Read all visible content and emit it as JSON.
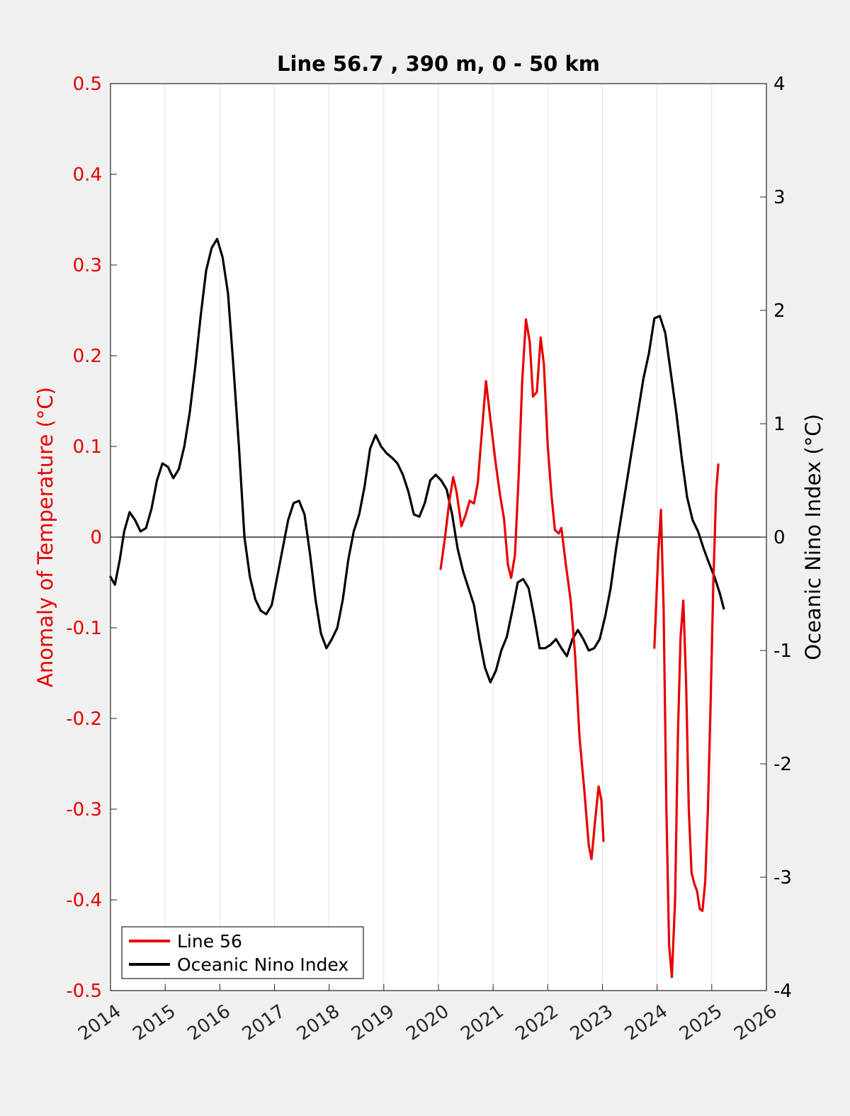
{
  "chart_data": {
    "type": "line",
    "title": "Line 56.7 , 390 m, 0 - 50 km",
    "xlabel": "",
    "ylabel_left": "Anomaly of Temperature (°C)",
    "ylabel_right": "Oceanic Nino Index (°C)",
    "xlim": [
      2014,
      2026
    ],
    "ylim_left": [
      -0.5,
      0.5
    ],
    "ylim_right": [
      -4,
      4
    ],
    "x_ticks": [
      "2014",
      "2015",
      "2016",
      "2017",
      "2018",
      "2019",
      "2020",
      "2021",
      "2022",
      "2023",
      "2024",
      "2025",
      "2026"
    ],
    "y_ticks_left": [
      "0.5",
      "0.4",
      "0.3",
      "0.2",
      "0.1",
      "0",
      "-0.1",
      "-0.2",
      "-0.3",
      "-0.4",
      "-0.5"
    ],
    "y_ticks_right": [
      "4",
      "3",
      "2",
      "1",
      "0",
      "-1",
      "-2",
      "-3",
      "-4"
    ],
    "grid": "vertical",
    "legend_placement": "bottom-left",
    "colors": {
      "left_axis": "#e60000",
      "line56": "#e60000",
      "oni": "#000000",
      "background": "#f0f0f0"
    },
    "series": [
      {
        "name": "Line 56",
        "axis": "left",
        "segments": [
          [
            [
              2020.04,
              -0.035
            ],
            [
              2020.12,
              0.0
            ],
            [
              2020.2,
              0.04
            ],
            [
              2020.27,
              0.066
            ],
            [
              2020.33,
              0.05
            ],
            [
              2020.42,
              0.012
            ],
            [
              2020.5,
              0.025
            ],
            [
              2020.57,
              0.04
            ],
            [
              2020.65,
              0.037
            ],
            [
              2020.72,
              0.06
            ],
            [
              2020.8,
              0.12
            ],
            [
              2020.87,
              0.172
            ],
            [
              2020.95,
              0.13
            ],
            [
              2021.05,
              0.08
            ],
            [
              2021.13,
              0.045
            ],
            [
              2021.2,
              0.02
            ],
            [
              2021.27,
              -0.03
            ],
            [
              2021.33,
              -0.045
            ],
            [
              2021.4,
              -0.02
            ],
            [
              2021.47,
              0.07
            ],
            [
              2021.53,
              0.17
            ],
            [
              2021.6,
              0.24
            ],
            [
              2021.67,
              0.215
            ],
            [
              2021.73,
              0.155
            ],
            [
              2021.8,
              0.16
            ],
            [
              2021.87,
              0.22
            ],
            [
              2021.93,
              0.19
            ],
            [
              2022.0,
              0.1
            ],
            [
              2022.07,
              0.045
            ],
            [
              2022.13,
              0.008
            ],
            [
              2022.2,
              0.004
            ],
            [
              2022.25,
              0.01
            ],
            [
              2022.33,
              -0.03
            ],
            [
              2022.42,
              -0.07
            ],
            [
              2022.5,
              -0.13
            ],
            [
              2022.58,
              -0.22
            ],
            [
              2022.67,
              -0.28
            ],
            [
              2022.75,
              -0.34
            ],
            [
              2022.8,
              -0.355
            ],
            [
              2022.87,
              -0.31
            ],
            [
              2022.93,
              -0.275
            ],
            [
              2022.98,
              -0.29
            ],
            [
              2023.02,
              -0.335
            ]
          ],
          [
            [
              2023.95,
              -0.122
            ],
            [
              2024.02,
              -0.02
            ],
            [
              2024.07,
              0.03
            ],
            [
              2024.12,
              -0.08
            ],
            [
              2024.17,
              -0.3
            ],
            [
              2024.22,
              -0.45
            ],
            [
              2024.27,
              -0.485
            ],
            [
              2024.33,
              -0.4
            ],
            [
              2024.38,
              -0.22
            ],
            [
              2024.43,
              -0.11
            ],
            [
              2024.48,
              -0.07
            ],
            [
              2024.53,
              -0.16
            ],
            [
              2024.58,
              -0.3
            ],
            [
              2024.63,
              -0.37
            ],
            [
              2024.68,
              -0.382
            ],
            [
              2024.73,
              -0.39
            ],
            [
              2024.78,
              -0.41
            ],
            [
              2024.83,
              -0.412
            ],
            [
              2024.88,
              -0.38
            ],
            [
              2024.93,
              -0.3
            ],
            [
              2024.98,
              -0.18
            ],
            [
              2025.03,
              -0.05
            ],
            [
              2025.08,
              0.05
            ],
            [
              2025.12,
              0.08
            ]
          ]
        ]
      },
      {
        "name": "Oceanic Nino Index",
        "axis": "right",
        "segments": [
          [
            [
              2014.0,
              -0.35
            ],
            [
              2014.08,
              -0.42
            ],
            [
              2014.17,
              -0.2
            ],
            [
              2014.25,
              0.05
            ],
            [
              2014.35,
              0.22
            ],
            [
              2014.45,
              0.15
            ],
            [
              2014.55,
              0.05
            ],
            [
              2014.65,
              0.08
            ],
            [
              2014.75,
              0.25
            ],
            [
              2014.85,
              0.5
            ],
            [
              2014.95,
              0.65
            ],
            [
              2015.05,
              0.62
            ],
            [
              2015.15,
              0.52
            ],
            [
              2015.25,
              0.6
            ],
            [
              2015.35,
              0.8
            ],
            [
              2015.45,
              1.1
            ],
            [
              2015.55,
              1.5
            ],
            [
              2015.65,
              1.95
            ],
            [
              2015.75,
              2.35
            ],
            [
              2015.85,
              2.55
            ],
            [
              2015.95,
              2.63
            ],
            [
              2016.05,
              2.47
            ],
            [
              2016.15,
              2.15
            ],
            [
              2016.25,
              1.5
            ],
            [
              2016.35,
              0.8
            ],
            [
              2016.45,
              0.0
            ],
            [
              2016.55,
              -0.35
            ],
            [
              2016.65,
              -0.55
            ],
            [
              2016.75,
              -0.65
            ],
            [
              2016.85,
              -0.68
            ],
            [
              2016.95,
              -0.6
            ],
            [
              2017.05,
              -0.35
            ],
            [
              2017.15,
              -0.1
            ],
            [
              2017.25,
              0.15
            ],
            [
              2017.35,
              0.3
            ],
            [
              2017.45,
              0.32
            ],
            [
              2017.55,
              0.2
            ],
            [
              2017.65,
              -0.15
            ],
            [
              2017.75,
              -0.55
            ],
            [
              2017.85,
              -0.85
            ],
            [
              2017.95,
              -0.98
            ],
            [
              2018.05,
              -0.9
            ],
            [
              2018.15,
              -0.8
            ],
            [
              2018.25,
              -0.55
            ],
            [
              2018.35,
              -0.2
            ],
            [
              2018.45,
              0.05
            ],
            [
              2018.55,
              0.2
            ],
            [
              2018.65,
              0.45
            ],
            [
              2018.75,
              0.78
            ],
            [
              2018.85,
              0.9
            ],
            [
              2018.95,
              0.8
            ],
            [
              2019.05,
              0.74
            ],
            [
              2019.15,
              0.7
            ],
            [
              2019.25,
              0.65
            ],
            [
              2019.35,
              0.55
            ],
            [
              2019.45,
              0.4
            ],
            [
              2019.55,
              0.2
            ],
            [
              2019.65,
              0.18
            ],
            [
              2019.75,
              0.3
            ],
            [
              2019.85,
              0.5
            ],
            [
              2019.95,
              0.55
            ],
            [
              2020.05,
              0.5
            ],
            [
              2020.15,
              0.42
            ],
            [
              2020.25,
              0.2
            ],
            [
              2020.35,
              -0.1
            ],
            [
              2020.45,
              -0.3
            ],
            [
              2020.55,
              -0.45
            ],
            [
              2020.65,
              -0.6
            ],
            [
              2020.75,
              -0.9
            ],
            [
              2020.85,
              -1.15
            ],
            [
              2020.95,
              -1.28
            ],
            [
              2021.05,
              -1.18
            ],
            [
              2021.15,
              -1.0
            ],
            [
              2021.25,
              -0.88
            ],
            [
              2021.35,
              -0.65
            ],
            [
              2021.45,
              -0.4
            ],
            [
              2021.55,
              -0.37
            ],
            [
              2021.65,
              -0.45
            ],
            [
              2021.75,
              -0.7
            ],
            [
              2021.85,
              -0.98
            ],
            [
              2021.95,
              -0.98
            ],
            [
              2022.05,
              -0.95
            ],
            [
              2022.15,
              -0.9
            ],
            [
              2022.25,
              -0.98
            ],
            [
              2022.35,
              -1.05
            ],
            [
              2022.45,
              -0.9
            ],
            [
              2022.55,
              -0.82
            ],
            [
              2022.65,
              -0.9
            ],
            [
              2022.75,
              -1.0
            ],
            [
              2022.85,
              -0.98
            ],
            [
              2022.95,
              -0.9
            ],
            [
              2023.05,
              -0.7
            ],
            [
              2023.15,
              -0.45
            ],
            [
              2023.25,
              -0.1
            ],
            [
              2023.35,
              0.2
            ],
            [
              2023.45,
              0.5
            ],
            [
              2023.55,
              0.8
            ],
            [
              2023.65,
              1.1
            ],
            [
              2023.75,
              1.4
            ],
            [
              2023.85,
              1.62
            ],
            [
              2023.95,
              1.93
            ],
            [
              2024.05,
              1.95
            ],
            [
              2024.15,
              1.8
            ],
            [
              2024.25,
              1.45
            ],
            [
              2024.35,
              1.1
            ],
            [
              2024.45,
              0.7
            ],
            [
              2024.55,
              0.35
            ],
            [
              2024.65,
              0.15
            ],
            [
              2024.75,
              0.05
            ],
            [
              2024.85,
              -0.1
            ],
            [
              2024.95,
              -0.23
            ],
            [
              2025.05,
              -0.35
            ],
            [
              2025.15,
              -0.5
            ],
            [
              2025.22,
              -0.63
            ]
          ]
        ]
      }
    ]
  },
  "legend": {
    "items": [
      {
        "label": "Line 56",
        "color": "#e60000"
      },
      {
        "label": "Oceanic Nino Index",
        "color": "#000000"
      }
    ]
  }
}
